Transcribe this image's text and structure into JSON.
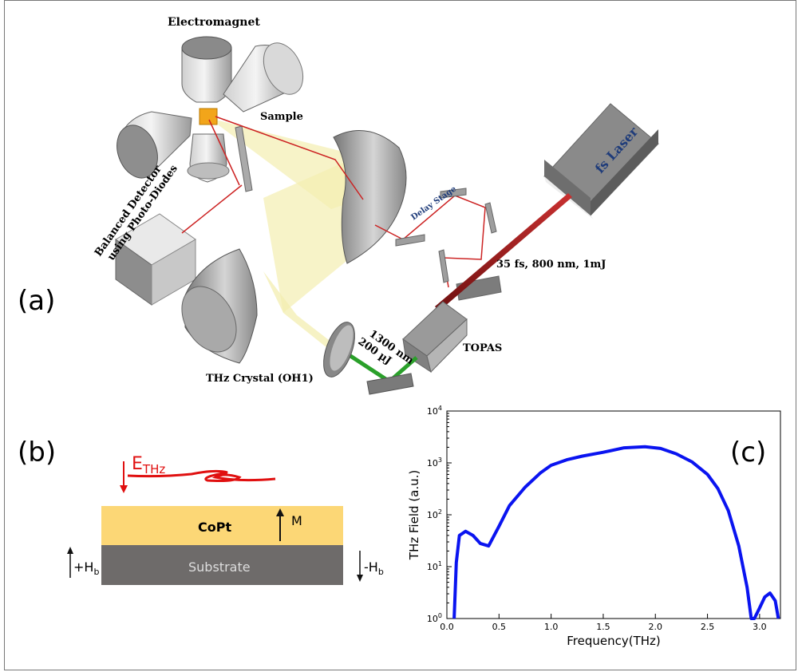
{
  "panels": {
    "a": "(a)",
    "b": "(b)",
    "c": "(c)"
  },
  "setup": {
    "electromagnet": "Electromagnet",
    "sample": "Sample",
    "detector_line1": "Balanced Detector",
    "detector_line2": "using Photo-Diodes",
    "delay_stage": "Delay Stage",
    "laser": "fs Laser",
    "pulse": "35 fs, 800 nm, 1mJ",
    "topas": "TOPAS",
    "idler_line1": "1300 nm",
    "idler_line2": "200 µJ",
    "crystal": "THz Crystal (OH1)"
  },
  "layers": {
    "field": "E",
    "field_sub": "THz",
    "film": "CoPt",
    "magnetization": "M",
    "substrate": "Substrate",
    "bias_pos": "+H",
    "bias_neg": "-H",
    "bias_sub": "b"
  },
  "colors": {
    "laser_beam": "#a81c1c",
    "pump_beam": "#2aa02a",
    "probe_beam": "#cc2222",
    "thz_beam": "#f3eeb0",
    "film": "#fcd776",
    "substrate": "#6e6b6a",
    "spectrum": "#0a14f0",
    "field_arrow": "#e01010"
  },
  "chart_data": {
    "type": "line",
    "xlabel": "Frequency(THz)",
    "ylabel": "THz Field (a.u.)",
    "scale_y": "log",
    "xlim": [
      0.0,
      3.2
    ],
    "ylim": [
      1,
      10000
    ],
    "x_ticks": [
      "0.0",
      "0.5",
      "1.0",
      "1.5",
      "2.0",
      "2.5",
      "3.0"
    ],
    "y_ticks": [
      {
        "base": "10",
        "exp": "0"
      },
      {
        "base": "10",
        "exp": "1"
      },
      {
        "base": "10",
        "exp": "2"
      },
      {
        "base": "10",
        "exp": "3"
      },
      {
        "base": "10",
        "exp": "4"
      }
    ],
    "series": [
      {
        "x": [
          0.07,
          0.09,
          0.12,
          0.18,
          0.25,
          0.32,
          0.4,
          0.5,
          0.6,
          0.75,
          0.9,
          1.0,
          1.15,
          1.3,
          1.5,
          1.7,
          1.9,
          2.05,
          2.2,
          2.35,
          2.5,
          2.6,
          2.7,
          2.8,
          2.88,
          2.92,
          2.95,
          3.0,
          3.05,
          3.1,
          3.15,
          3.18
        ],
        "y": [
          1,
          12,
          40,
          48,
          40,
          28,
          25,
          60,
          150,
          340,
          650,
          900,
          1150,
          1350,
          1600,
          1950,
          2050,
          1900,
          1500,
          1050,
          600,
          320,
          120,
          25,
          4,
          1,
          1,
          1.6,
          2.6,
          3.1,
          2.2,
          1
        ]
      }
    ]
  }
}
